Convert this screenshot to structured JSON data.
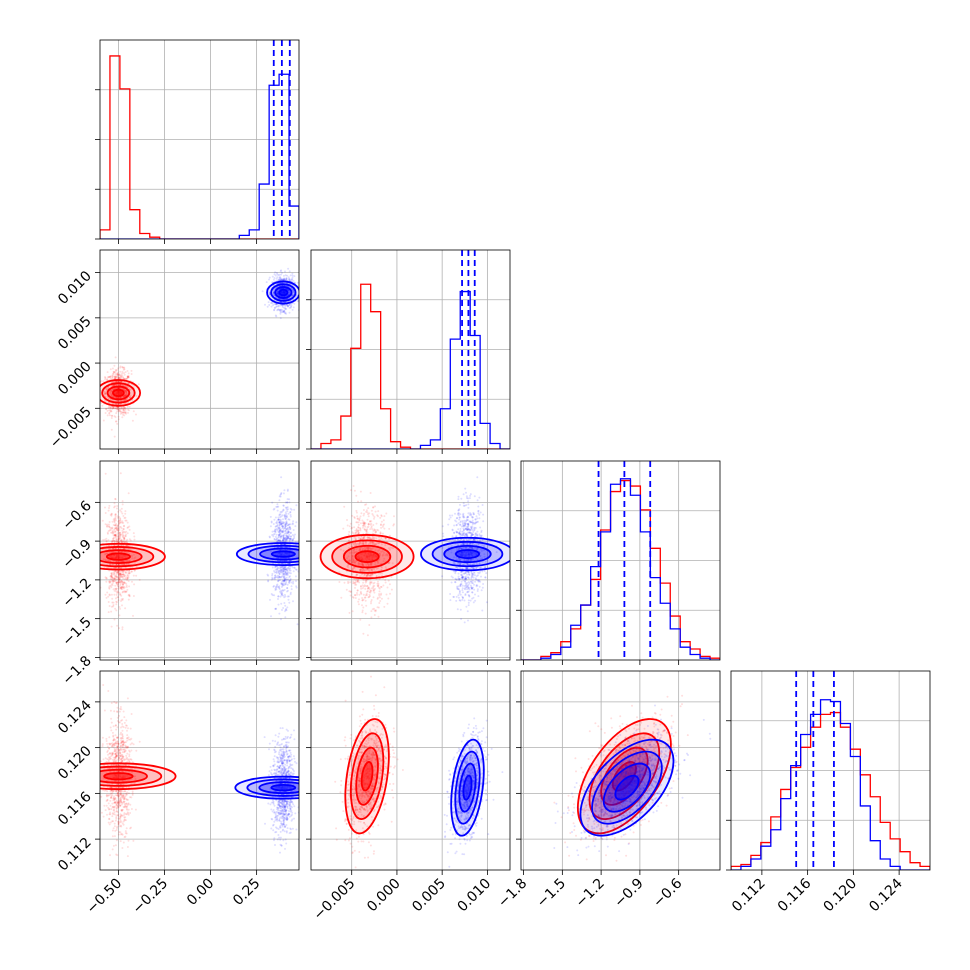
{
  "chart_data": {
    "type": "corner",
    "colors": {
      "red": "#ff0000",
      "blue": "#0000ff",
      "grid": "#b0b0b0"
    },
    "parameters": [
      {
        "range": [
          -0.6,
          0.48
        ],
        "ticks": [
          "−0.50",
          "−0.25",
          "0.00",
          "0.25"
        ],
        "tick_values": [
          -0.5,
          -0.25,
          0.0,
          0.25
        ]
      },
      {
        "range": [
          -0.0095,
          0.0125
        ],
        "ticks": [
          "−0.005",
          "0.000",
          "0.005",
          "0.010"
        ],
        "tick_values": [
          -0.005,
          0.0,
          0.005,
          0.01
        ]
      },
      {
        "range": [
          -1.82,
          -0.28
        ],
        "ticks": [
          "−1.8",
          "−1.5",
          "−1.2",
          "−0.9",
          "−0.6"
        ],
        "tick_values": [
          -1.8,
          -1.5,
          -1.2,
          -0.9,
          -0.6
        ]
      },
      {
        "range": [
          0.1093,
          0.1267
        ],
        "ticks": [
          "0.112",
          "0.116",
          "0.120",
          "0.124"
        ],
        "tick_values": [
          0.112,
          0.116,
          0.12,
          0.124
        ]
      }
    ],
    "series": [
      {
        "color": "red",
        "means": [
          -0.5,
          -0.0033,
          -1.02,
          0.1175
        ],
        "stds": [
          0.035,
          0.0012,
          0.18,
          0.0025
        ],
        "hist": [
          [
            0.05,
            1.0,
            0.82,
            0.16,
            0.03,
            0.01,
            0.0,
            0.0,
            0.0,
            0.0,
            0.0,
            0.0,
            0.0,
            0.0,
            0.0,
            0.0,
            0.0,
            0.0,
            0.0,
            0.0
          ],
          [
            0.0,
            0.03,
            0.05,
            0.18,
            0.55,
            0.9,
            0.75,
            0.22,
            0.04,
            0.01,
            0.0,
            0.0,
            0.0,
            0.0,
            0.0,
            0.0,
            0.0,
            0.0,
            0.0,
            0.0
          ],
          [
            0.0,
            0.0,
            0.02,
            0.04,
            0.1,
            0.17,
            0.3,
            0.44,
            0.71,
            0.92,
            0.98,
            0.95,
            0.82,
            0.61,
            0.42,
            0.24,
            0.1,
            0.06,
            0.02,
            0.01
          ],
          [
            0.02,
            0.03,
            0.08,
            0.15,
            0.29,
            0.44,
            0.56,
            0.67,
            0.78,
            0.85,
            0.86,
            0.78,
            0.66,
            0.52,
            0.4,
            0.26,
            0.17,
            0.1,
            0.04,
            0.02
          ]
        ]
      },
      {
        "color": "blue",
        "means": [
          0.395,
          0.0078,
          -1.0,
          0.1165
        ],
        "stds": [
          0.03,
          0.0009,
          0.18,
          0.0021
        ],
        "hist": [
          [
            0.0,
            0.0,
            0.0,
            0.0,
            0.0,
            0.0,
            0.0,
            0.0,
            0.0,
            0.0,
            0.0,
            0.0,
            0.0,
            0.0,
            0.02,
            0.05,
            0.3,
            0.84,
            0.9,
            0.18
          ],
          [
            0.0,
            0.0,
            0.0,
            0.0,
            0.0,
            0.0,
            0.0,
            0.0,
            0.0,
            0.0,
            0.0,
            0.02,
            0.05,
            0.22,
            0.6,
            0.86,
            0.62,
            0.14,
            0.03,
            0.0
          ],
          [
            0.0,
            0.0,
            0.01,
            0.03,
            0.07,
            0.19,
            0.3,
            0.51,
            0.7,
            0.96,
            0.99,
            0.9,
            0.7,
            0.45,
            0.31,
            0.17,
            0.07,
            0.03,
            0.01,
            0.0
          ],
          [
            0.0,
            0.02,
            0.06,
            0.13,
            0.22,
            0.39,
            0.57,
            0.74,
            0.85,
            0.93,
            0.92,
            0.8,
            0.62,
            0.35,
            0.16,
            0.06,
            0.02,
            0.0,
            0.0,
            0.0
          ]
        ],
        "quantile_lines": [
          [
            0.343,
            0.387,
            0.43
          ],
          [
            0.0072,
            0.0079,
            0.0086
          ],
          [
            -1.22,
            -1.02,
            -0.82
          ],
          [
            0.115,
            0.1165,
            0.1183
          ]
        ]
      }
    ],
    "correlations": {
      "2-3": 0.55,
      "1-3": 0.35,
      "0-3": 0.0,
      "0-2": 0.0,
      "1-2": 0.0,
      "0-1": 0.0
    }
  }
}
